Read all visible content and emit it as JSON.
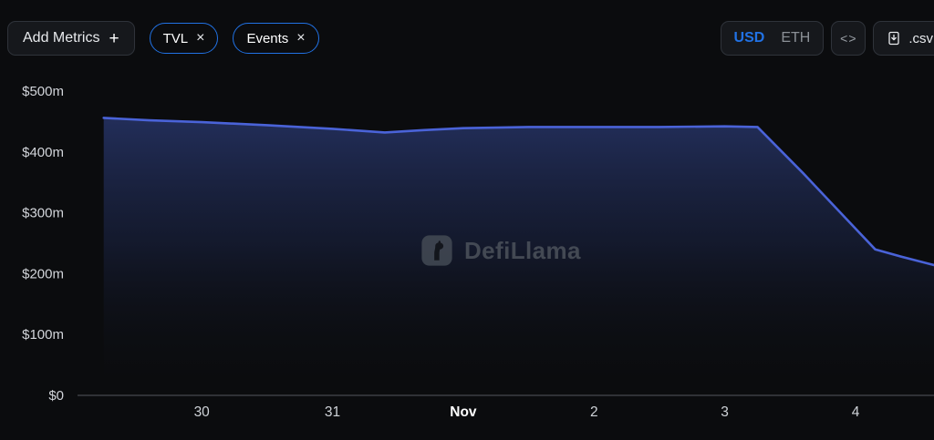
{
  "toolbar": {
    "add_metrics_label": "Add Metrics",
    "add_metrics_plus": "+",
    "pills": [
      {
        "label": "TVL",
        "close_glyph": "×"
      },
      {
        "label": "Events",
        "close_glyph": "×"
      }
    ],
    "currency_options": [
      "USD",
      "ETH"
    ],
    "currency_selected": "USD",
    "embed_label": "<>",
    "csv_label": ".csv"
  },
  "watermark_text": "DefiLlama",
  "colors": {
    "accent_blue": "#2172e5",
    "line_blue": "#4a63d8",
    "background": "#0b0c0e",
    "area_fill_top": "#232f5c",
    "axis_label": "#d2d5da"
  },
  "chart_data": {
    "type": "area",
    "legend_position": "none",
    "grid": false,
    "xlim": [
      29.05,
      35.6
    ],
    "ylim": [
      0,
      500
    ],
    "y_ticks": [
      {
        "label": "$500m",
        "value": 500
      },
      {
        "label": "$400m",
        "value": 400
      },
      {
        "label": "$300m",
        "value": 300
      },
      {
        "label": "$200m",
        "value": 200
      },
      {
        "label": "$100m",
        "value": 100
      },
      {
        "label": "$0",
        "value": 0
      }
    ],
    "x_ticks": [
      {
        "label": "30",
        "day": 30,
        "bold": false
      },
      {
        "label": "31",
        "day": 31,
        "bold": false
      },
      {
        "label": "Nov",
        "day": 32,
        "bold": true
      },
      {
        "label": "2",
        "day": 33,
        "bold": false
      },
      {
        "label": "3",
        "day": 34,
        "bold": false
      },
      {
        "label": "4",
        "day": 35,
        "bold": false
      }
    ],
    "series": [
      {
        "name": "TVL",
        "unit": "USD millions",
        "x": [
          29.25,
          29.6,
          30,
          30.5,
          31,
          31.4,
          31.7,
          32,
          32.5,
          33,
          33.5,
          34,
          34.25,
          34.6,
          35,
          35.15,
          35.35,
          35.6
        ],
        "values": [
          456,
          452,
          449,
          444,
          438,
          432,
          436,
          439,
          441,
          441,
          441,
          442,
          441,
          365,
          274,
          240,
          228,
          214
        ]
      }
    ]
  }
}
